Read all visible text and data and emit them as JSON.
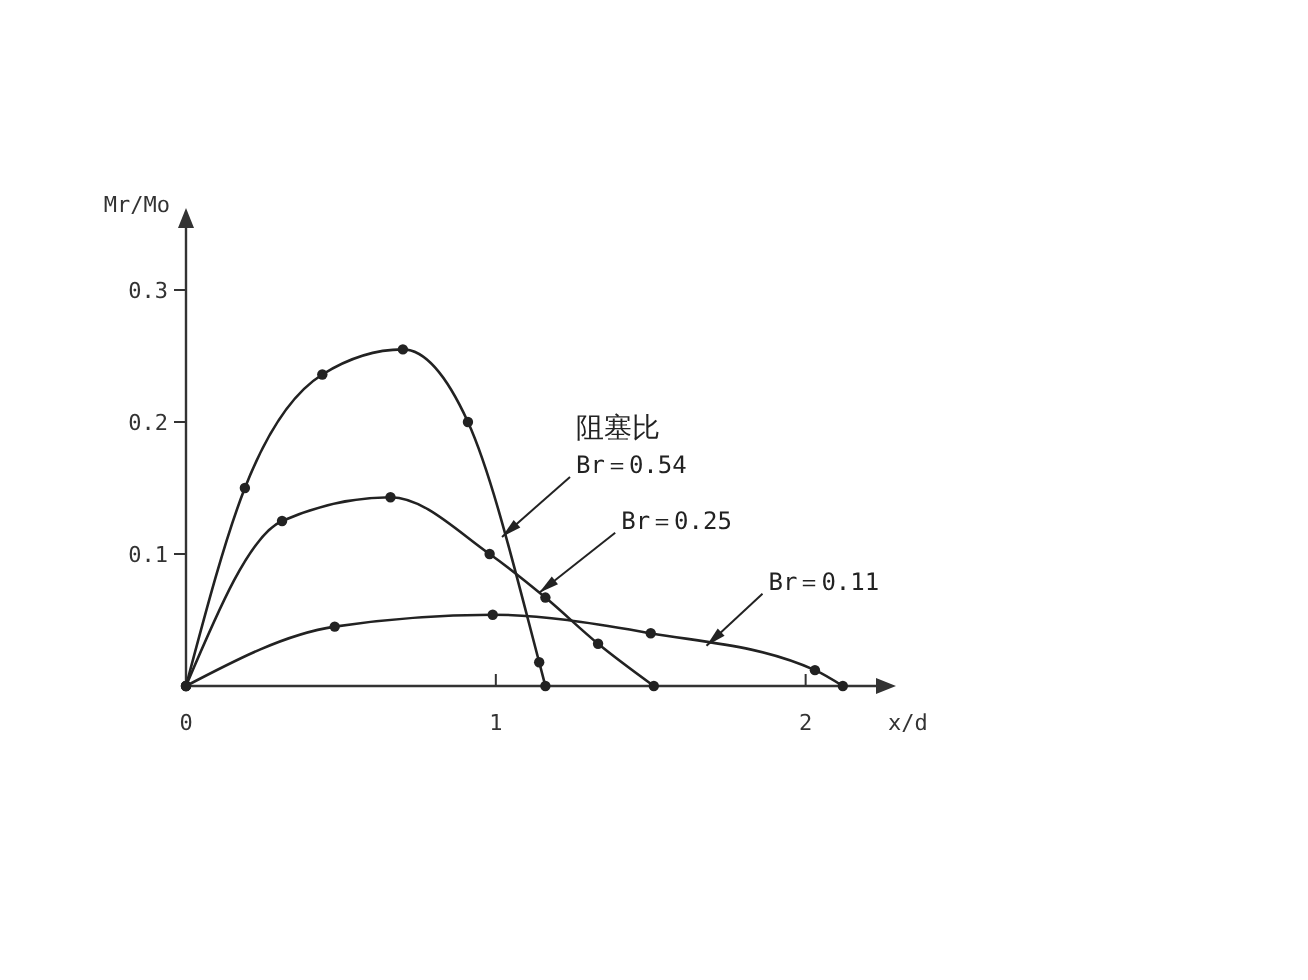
{
  "chart_data": {
    "type": "line",
    "xlabel": "x/d",
    "ylabel": "Mr/Mo",
    "legend_title": "阻塞比",
    "xlim": [
      0,
      2.24
    ],
    "ylim": [
      0,
      0.35
    ],
    "xticks": [
      0,
      1,
      2
    ],
    "yticks": [
      0.1,
      0.2,
      0.3
    ],
    "grid": false,
    "marker": "circle",
    "line_style": "solid",
    "series": [
      {
        "name": "Br＝0.54",
        "color": "#222222",
        "x": [
          0,
          0.19,
          0.44,
          0.7,
          0.91,
          1.14,
          1.16
        ],
        "values": [
          0,
          0.15,
          0.236,
          0.255,
          0.2,
          0.018,
          0
        ]
      },
      {
        "name": "Br＝0.25",
        "color": "#222222",
        "x": [
          0,
          0.31,
          0.66,
          0.98,
          1.16,
          1.33,
          1.51
        ],
        "values": [
          0,
          0.125,
          0.143,
          0.1,
          0.067,
          0.032,
          0
        ]
      },
      {
        "name": "Br＝0.11",
        "color": "#222222",
        "x": [
          0,
          0.48,
          0.99,
          1.5,
          2.03,
          2.12
        ],
        "values": [
          0,
          0.045,
          0.054,
          0.04,
          0.012,
          0
        ]
      }
    ]
  }
}
